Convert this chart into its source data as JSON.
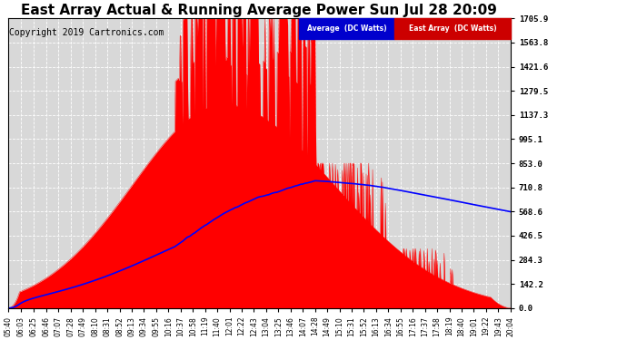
{
  "title": "East Array Actual & Running Average Power Sun Jul 28 20:09",
  "copyright": "Copyright 2019 Cartronics.com",
  "legend_labels": [
    "Average  (DC Watts)",
    "East Array  (DC Watts)"
  ],
  "legend_colors": [
    "#0000cd",
    "#cc0000"
  ],
  "legend_bg_colors": [
    "#0000cd",
    "#cc0000"
  ],
  "legend_text_color": "#ffffff",
  "yticks": [
    0.0,
    142.2,
    284.3,
    426.5,
    568.6,
    710.8,
    853.0,
    995.1,
    1137.3,
    1279.5,
    1421.6,
    1563.8,
    1705.9
  ],
  "ymax": 1705.9,
  "bg_color": "#ffffff",
  "plot_bg_color": "#d8d8d8",
  "grid_color": "#ffffff",
  "bar_color": "#ff0000",
  "avg_color": "#0000ff",
  "title_fontsize": 11,
  "copyright_fontsize": 7,
  "x_label_rotation": 90,
  "x_tick_labels": [
    "05:40",
    "06:03",
    "06:25",
    "06:46",
    "07:07",
    "07:28",
    "07:49",
    "08:10",
    "08:31",
    "08:52",
    "09:13",
    "09:34",
    "09:55",
    "10:16",
    "10:37",
    "10:58",
    "11:19",
    "11:40",
    "12:01",
    "12:22",
    "12:43",
    "13:04",
    "13:25",
    "13:46",
    "14:07",
    "14:28",
    "14:49",
    "15:10",
    "15:31",
    "15:52",
    "16:13",
    "16:34",
    "16:55",
    "17:16",
    "17:37",
    "17:58",
    "18:19",
    "18:40",
    "19:01",
    "19:22",
    "19:43",
    "20:04"
  ]
}
